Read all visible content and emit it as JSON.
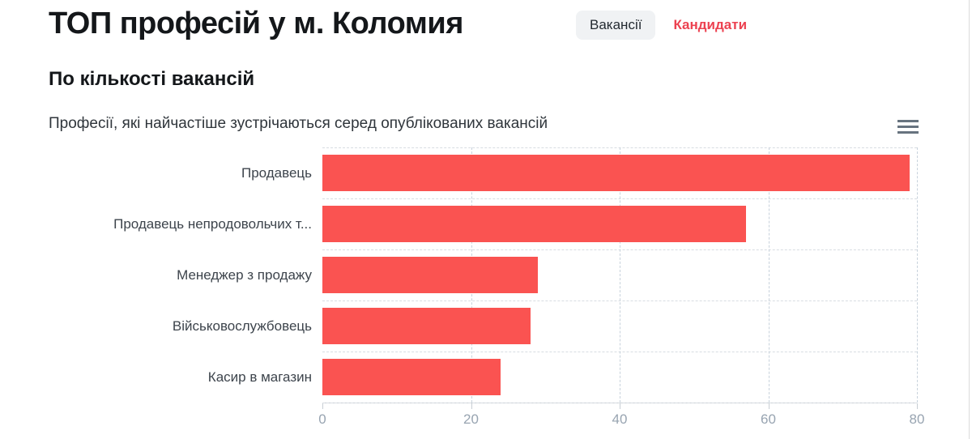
{
  "header": {
    "title": "ТОП професій у м. Коломия",
    "tabs": [
      {
        "label": "Вакансії",
        "active": true
      },
      {
        "label": "Кандидати",
        "active": false
      }
    ]
  },
  "section": {
    "subtitle": "По кількості вакансій",
    "description": "Професії, які найчастіше зустрічаються серед опублікованих вакансій",
    "menu_icon": "hamburger-menu-icon"
  },
  "colors": {
    "bar": "#fa5351",
    "tab_active_bg": "#f0f2f4",
    "tab_link_text": "#ec4150",
    "grid_horizontal": "#d8dde2",
    "grid_vertical": "#c8d2dc",
    "axis_tick_label": "#98a4b1"
  },
  "chart_data": {
    "type": "bar",
    "orientation": "horizontal",
    "title": "По кількості вакансій",
    "subtitle": "Професії, які найчастіше зустрічаються серед опублікованих вакансій",
    "categories": [
      "Продавець",
      "Продавець непродовольчих т...",
      "Менеджер з продажу",
      "Військовослужбовець",
      "Касир в магазин"
    ],
    "values": [
      79,
      57,
      29,
      28,
      24
    ],
    "xlabel": "",
    "ylabel": "",
    "xlim": [
      0,
      80
    ],
    "xticks": [
      0,
      20,
      40,
      60,
      80
    ],
    "grid": "dashed",
    "legend": "none",
    "bar_color": "#fa5351"
  }
}
